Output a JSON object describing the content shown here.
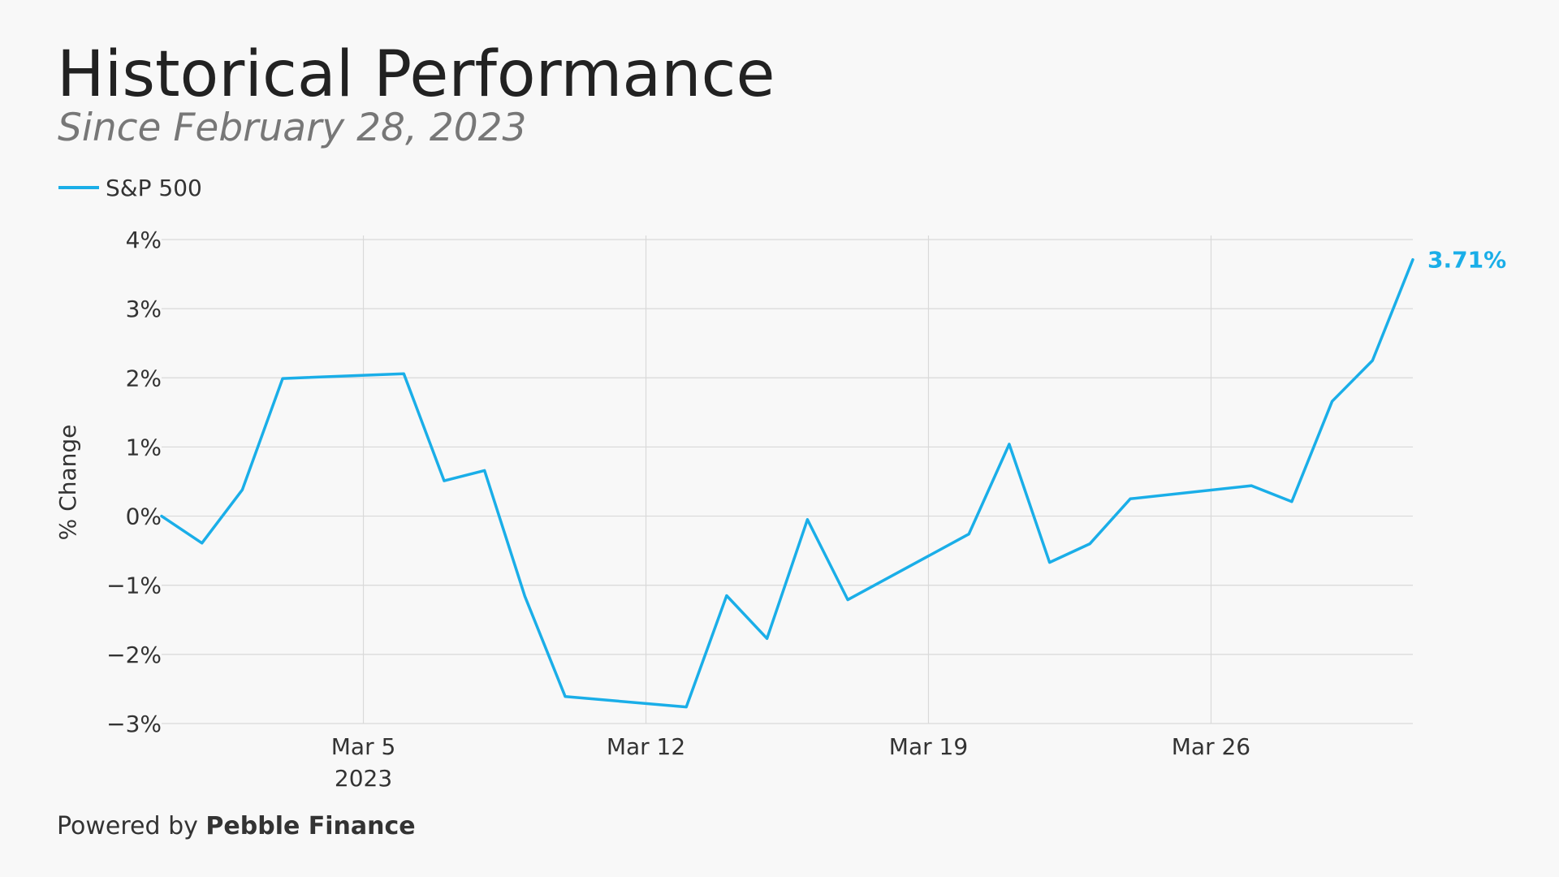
{
  "title": "Historical Performance",
  "subtitle": "Since February 28, 2023",
  "footer": {
    "prefix": "Powered by ",
    "brand": "Pebble Finance"
  },
  "colors": {
    "series": "#1aaee8",
    "grid": "#d9d9d9",
    "text": "#333333",
    "background": "#f8f8f8"
  },
  "chart_data": {
    "type": "line",
    "ylabel": "% Change",
    "xlabel": "",
    "ylim": [
      -3,
      4
    ],
    "xlim": [
      "2023-02-28",
      "2023-03-31"
    ],
    "yticks": [
      {
        "value": -3,
        "label": "−3%"
      },
      {
        "value": -2,
        "label": "−2%"
      },
      {
        "value": -1,
        "label": "−1%"
      },
      {
        "value": 0,
        "label": "0%"
      },
      {
        "value": 1,
        "label": "1%"
      },
      {
        "value": 2,
        "label": "2%"
      },
      {
        "value": 3,
        "label": "3%"
      },
      {
        "value": 4,
        "label": "4%"
      }
    ],
    "xticks": [
      {
        "value": "2023-03-05",
        "label": "Mar 5",
        "sublabel": "2023"
      },
      {
        "value": "2023-03-12",
        "label": "Mar 12",
        "sublabel": ""
      },
      {
        "value": "2023-03-19",
        "label": "Mar 19",
        "sublabel": ""
      },
      {
        "value": "2023-03-26",
        "label": "Mar 26",
        "sublabel": ""
      }
    ],
    "grid": true,
    "legend_position": "top-left",
    "series": [
      {
        "name": "S&P 500",
        "color": "#1aaee8",
        "end_label": "3.71%",
        "points": [
          {
            "x": "2023-02-28",
            "y": 0.0
          },
          {
            "x": "2023-03-01",
            "y": -0.39
          },
          {
            "x": "2023-03-02",
            "y": 0.38
          },
          {
            "x": "2023-03-03",
            "y": 1.99
          },
          {
            "x": "2023-03-06",
            "y": 2.06
          },
          {
            "x": "2023-03-07",
            "y": 0.51
          },
          {
            "x": "2023-03-08",
            "y": 0.66
          },
          {
            "x": "2023-03-09",
            "y": -1.16
          },
          {
            "x": "2023-03-10",
            "y": -2.61
          },
          {
            "x": "2023-03-13",
            "y": -2.76
          },
          {
            "x": "2023-03-14",
            "y": -1.15
          },
          {
            "x": "2023-03-15",
            "y": -1.77
          },
          {
            "x": "2023-03-16",
            "y": -0.05
          },
          {
            "x": "2023-03-17",
            "y": -1.21
          },
          {
            "x": "2023-03-20",
            "y": -0.26
          },
          {
            "x": "2023-03-21",
            "y": 1.04
          },
          {
            "x": "2023-03-22",
            "y": -0.67
          },
          {
            "x": "2023-03-23",
            "y": -0.4
          },
          {
            "x": "2023-03-24",
            "y": 0.25
          },
          {
            "x": "2023-03-27",
            "y": 0.44
          },
          {
            "x": "2023-03-28",
            "y": 0.21
          },
          {
            "x": "2023-03-29",
            "y": 1.66
          },
          {
            "x": "2023-03-30",
            "y": 2.25
          },
          {
            "x": "2023-03-31",
            "y": 3.71
          }
        ]
      }
    ]
  }
}
